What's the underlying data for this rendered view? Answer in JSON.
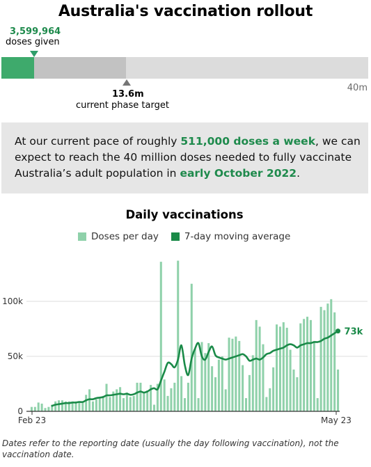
{
  "header": {
    "title": "Australia's vaccination rollout"
  },
  "progress": {
    "doses_given_value": "3,599,964",
    "doses_given_label": "doses given",
    "phase_target_value": "13.6m",
    "phase_target_label": "current phase target",
    "max_label": "40m",
    "doses_given": 3599964,
    "phase_target": 13600000,
    "max": 40000000,
    "colors": {
      "given": "#3eaa6c",
      "phase": "#c2c2c2",
      "track": "#dcdcdc"
    }
  },
  "summary": {
    "part1": "At our current pace of roughly ",
    "pace": "511,000 doses a week",
    "part2": ", we can expect to reach the 40 million doses needed to fully vaccinate Australia’s adult population in ",
    "date": "early October 2022",
    "part3": "."
  },
  "footnote": "Dates refer to the reporting date (usually the day following vaccination), not the vaccination date.",
  "chart_data": {
    "type": "bar",
    "title": "Daily vaccinations",
    "xlabel": "",
    "ylabel": "",
    "ylim": [
      0,
      140000
    ],
    "yticks": [
      0,
      50000,
      100000
    ],
    "ytick_labels": [
      "0",
      "50k",
      "100k"
    ],
    "grid": true,
    "legend": "top-center",
    "x_tick_labels": [
      "Feb 23",
      "May 23"
    ],
    "end_label": "73k",
    "colors": {
      "bars": "#8fd1aa",
      "line": "#1a8a48",
      "grid": "#dddddd",
      "axis": "#333333"
    },
    "series": [
      {
        "name": "Doses per day",
        "type": "bar",
        "values": [
          4000,
          4000,
          8000,
          7000,
          3000,
          4000,
          6000,
          9000,
          10000,
          10000,
          9000,
          9000,
          9000,
          9000,
          9000,
          8000,
          15000,
          20000,
          9000,
          11000,
          13000,
          14000,
          25000,
          13000,
          18000,
          20000,
          22000,
          12000,
          17000,
          13000,
          14000,
          26000,
          26000,
          17000,
          19000,
          24000,
          6000,
          25000,
          136000,
          29000,
          14000,
          21000,
          26000,
          137000,
          32000,
          12000,
          26000,
          116000,
          57000,
          12000,
          63000,
          53000,
          62000,
          41000,
          31000,
          47000,
          50000,
          20000,
          67000,
          66000,
          68000,
          64000,
          42000,
          12000,
          33000,
          51000,
          83000,
          77000,
          61000,
          13000,
          21000,
          40000,
          79000,
          77000,
          81000,
          76000,
          56000,
          38000,
          31000,
          80000,
          84000,
          86000,
          83000,
          64000,
          12000,
          95000,
          92000,
          98000,
          102000,
          90000,
          38000
        ]
      },
      {
        "name": "7-day moving average",
        "type": "line",
        "values": [
          null,
          null,
          null,
          null,
          null,
          null,
          5000,
          6000,
          6500,
          7000,
          7500,
          7500,
          8000,
          8000,
          8500,
          8500,
          10000,
          11000,
          11000,
          12000,
          12500,
          13000,
          14500,
          14500,
          15000,
          15500,
          16000,
          15500,
          16000,
          15000,
          15500,
          17000,
          18000,
          17000,
          18000,
          20000,
          21000,
          20000,
          28000,
          36000,
          44000,
          43000,
          40000,
          47000,
          60000,
          42000,
          33000,
          48000,
          57000,
          62000,
          50000,
          47000,
          54000,
          59000,
          51000,
          49000,
          48000,
          47000,
          48000,
          49000,
          50000,
          51000,
          52000,
          50000,
          46000,
          47000,
          48000,
          47000,
          49000,
          52000,
          53000,
          55000,
          56000,
          57000,
          58000,
          60000,
          61000,
          60000,
          58000,
          60000,
          61000,
          62000,
          62000,
          63000,
          63000,
          64000,
          66000,
          67000,
          69000,
          71000,
          73000
        ]
      }
    ]
  }
}
